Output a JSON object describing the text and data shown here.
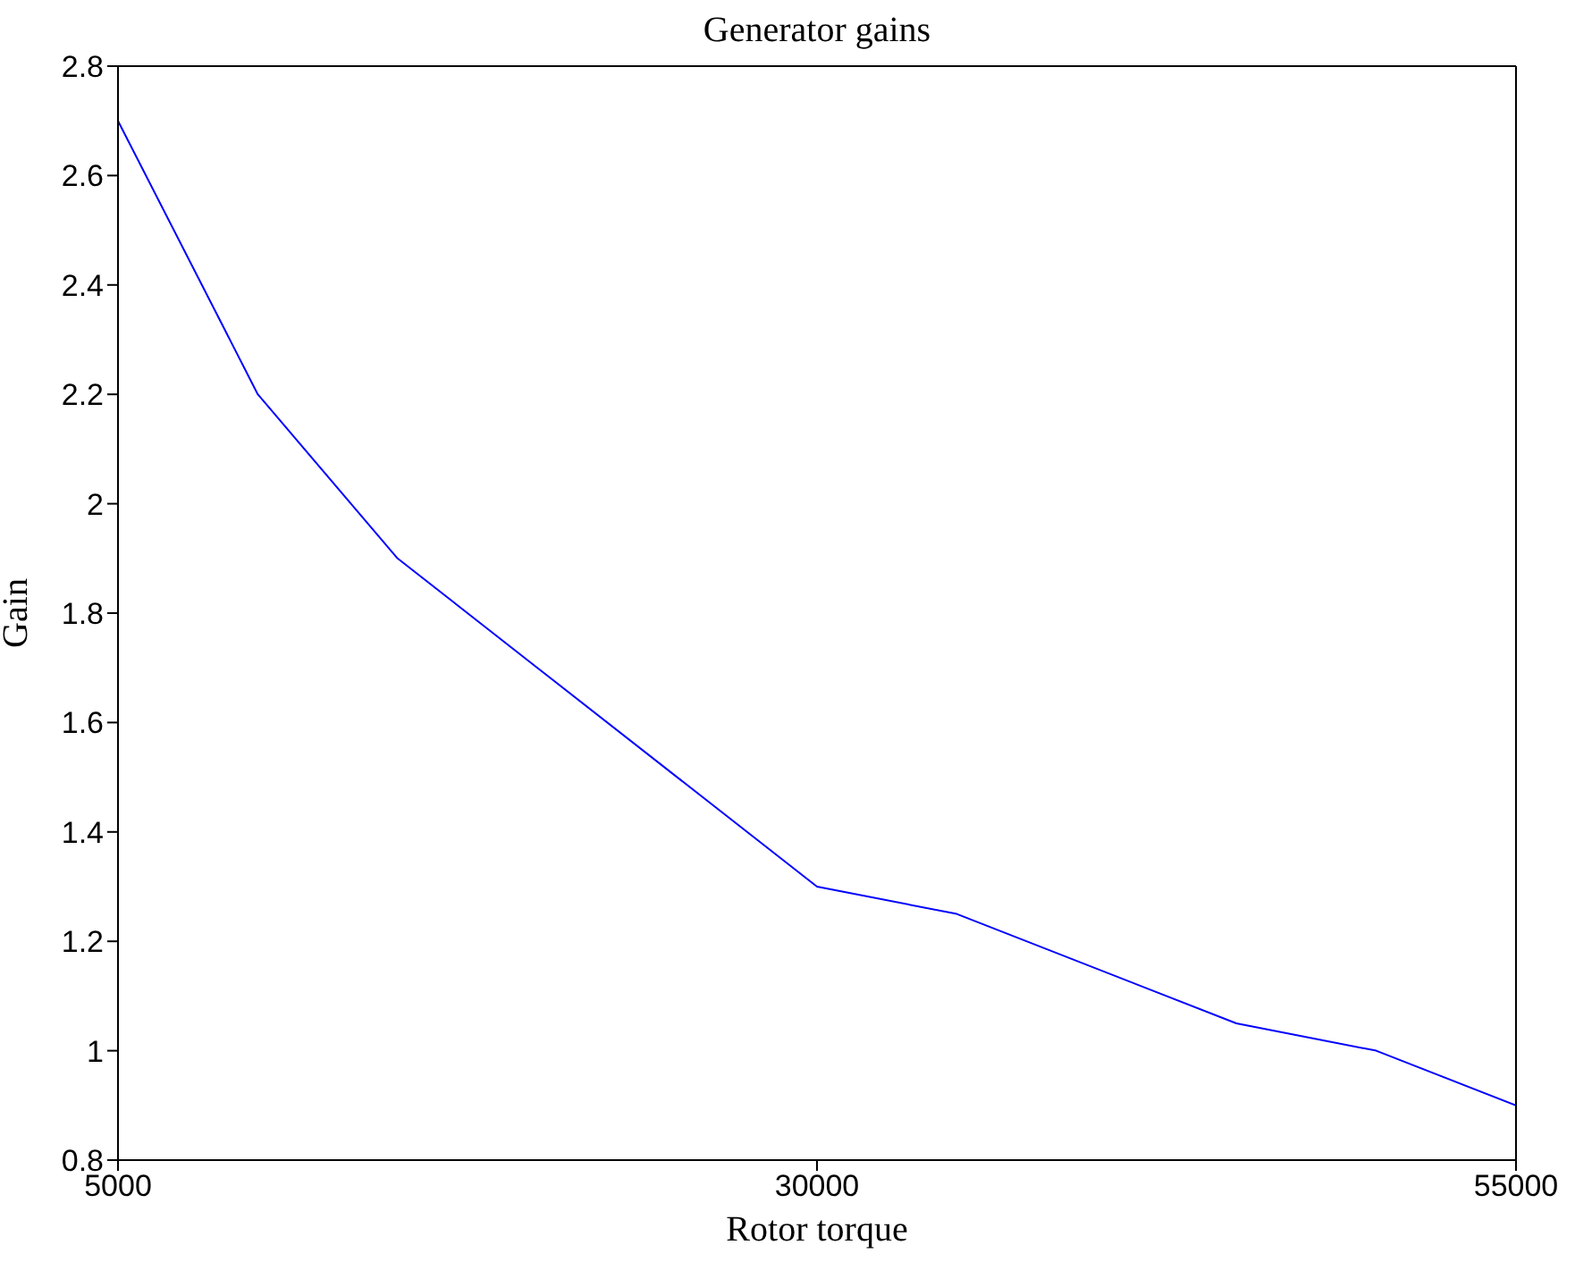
{
  "chart_data": {
    "type": "line",
    "title": "Generator gains",
    "xlabel": "Rotor torque",
    "ylabel": "Gain",
    "x": [
      5000,
      10000,
      15000,
      20000,
      25000,
      30000,
      35000,
      45000,
      50000,
      55000
    ],
    "series": [
      {
        "color": "#0000ff",
        "values": [
          2.7,
          2.2,
          1.9,
          1.7,
          1.5,
          1.3,
          1.25,
          1.05,
          1.0,
          0.9
        ]
      }
    ],
    "xlim": [
      5000,
      55000
    ],
    "xticks": [
      5000,
      30000,
      55000
    ],
    "ylim": [
      0.8,
      2.8
    ],
    "yticks": [
      0.8,
      1,
      1.2,
      1.4,
      1.6,
      1.8,
      2,
      2.2,
      2.4,
      2.6,
      2.8
    ],
    "grid": false,
    "legend": false,
    "marker": "none",
    "line_style": "solid"
  }
}
